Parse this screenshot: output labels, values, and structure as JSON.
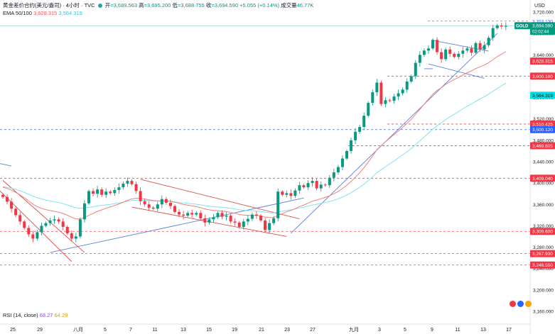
{
  "header": {
    "symbol": "黄金差价合约(美元/盎司) · 4小时 · TVC",
    "open_label": "开",
    "open": "=3,689.563",
    "high_label": "高",
    "high": "=3,695.200",
    "low_label": "低",
    "low": "=3,688.755",
    "close_label": "收",
    "close": "=3,694.590",
    "change": "+5.055 (+0.14%)",
    "volume_label": "成交量",
    "volume": "46.77K"
  },
  "ema": {
    "label": "EMA 50/100",
    "ema50": "3,628.315",
    "ema100": "3,564.319"
  },
  "rsi": {
    "label": "RSI (14, close)",
    "v1": "68.27",
    "v2": "64.29"
  },
  "currency": "USD",
  "colors": {
    "up": "#089981",
    "down": "#f23645",
    "ema50": "#f0807a",
    "ema100": "#7fe4f0",
    "trend": "#5b7fd9",
    "level": "#e04b4b",
    "blue_level": "#5b7fd9"
  },
  "chart_data": {
    "type": "candlestick",
    "ylim": [
      3140,
      3740
    ],
    "xlabels": [
      "25",
      "29",
      "八月",
      "5",
      "7",
      "11",
      "13",
      "15",
      "19",
      "21",
      "23",
      "27",
      "九月",
      "3",
      "5",
      "9",
      "11",
      "13",
      "17"
    ],
    "yticks": [
      "3,720.000",
      "3,680.000",
      "3,640.000",
      "3,600.000",
      "3,560.000",
      "3,520.000",
      "3,480.000",
      "3,440.000",
      "3,400.000",
      "3,360.000",
      "3,320.000",
      "3,280.000",
      "3,240.000",
      "3,200.000",
      "3,160.000"
    ],
    "ytick_values": [
      3720,
      3680,
      3640,
      3600,
      3560,
      3520,
      3480,
      3440,
      3400,
      3360,
      3320,
      3280,
      3240,
      3200,
      3160
    ],
    "levels_red": [
      {
        "label": "3,600.180",
        "value": 3600.18
      },
      {
        "label": "3,510.425",
        "value": 3510.425
      },
      {
        "label": "3,469.805",
        "value": 3469.805
      },
      {
        "label": "3,409.040",
        "value": 3409.04
      },
      {
        "label": "3,309.600",
        "value": 3309.6
      },
      {
        "label": "3,267.930",
        "value": 3267.93
      },
      {
        "label": "3,246.550",
        "value": 3246.55
      }
    ],
    "levels_blue": [
      {
        "label": "3,703.130",
        "value": 3703.13
      },
      {
        "label": "3,500.120",
        "value": 3500.12
      }
    ],
    "price_tag": {
      "symbol": "GOLD",
      "price": "3,694.590",
      "countdown": "02:02:44",
      "value": 3694.59
    },
    "ema50_tag": {
      "label": "3,628.315",
      "value": 3628.315
    },
    "ema100_tag": {
      "label": "3,564.319",
      "value": 3564.319
    },
    "closes": [
      3374,
      3365,
      3352,
      3340,
      3328,
      3316,
      3304,
      3296,
      3308,
      3320,
      3325,
      3330,
      3332,
      3328,
      3318,
      3306,
      3296,
      3300,
      3332,
      3362,
      3385,
      3380,
      3388,
      3378,
      3384,
      3381,
      3387,
      3392,
      3399,
      3404,
      3398,
      3385,
      3366,
      3360,
      3354,
      3352,
      3360,
      3370,
      3363,
      3357,
      3346,
      3341,
      3339,
      3344,
      3341,
      3344,
      3334,
      3326,
      3332,
      3336,
      3344,
      3337,
      3339,
      3328,
      3326,
      3318,
      3328,
      3333,
      3341,
      3339,
      3330,
      3312,
      3325,
      3334,
      3384,
      3378,
      3381,
      3376,
      3386,
      3396,
      3392,
      3400,
      3404,
      3390,
      3397,
      3396,
      3410,
      3420,
      3430,
      3446,
      3460,
      3480,
      3496,
      3505,
      3526,
      3550,
      3570,
      3588,
      3548,
      3555,
      3554,
      3562,
      3568,
      3575,
      3590,
      3600,
      3625,
      3640,
      3648,
      3652,
      3668,
      3645,
      3632,
      3650,
      3642,
      3636,
      3642,
      3648,
      3652,
      3644,
      3662,
      3650,
      3658,
      3672,
      3690,
      3695,
      3693,
      3694
    ]
  }
}
